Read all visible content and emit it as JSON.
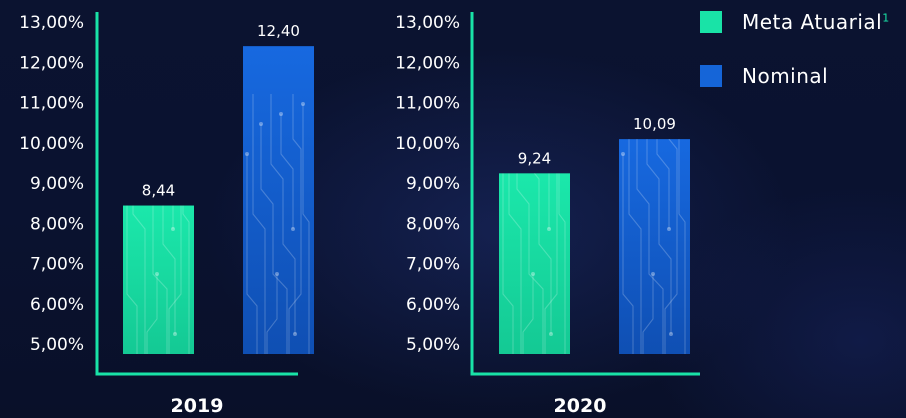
{
  "chart_data": [
    {
      "type": "bar",
      "categories": [
        "2019"
      ],
      "ylim": [
        5,
        13
      ],
      "yticks": [
        "5,00%",
        "6,00%",
        "7,00%",
        "8,00%",
        "9,00%",
        "10,00%",
        "11,00%",
        "12,00%",
        "13,00%"
      ],
      "series": [
        {
          "name": "Meta Atuarial",
          "values": [
            8.44
          ],
          "labels": [
            "8,44"
          ],
          "color": "#19e3a7"
        },
        {
          "name": "Nominal",
          "values": [
            12.4
          ],
          "labels": [
            "12,40"
          ],
          "color": "#1565d8"
        }
      ],
      "grid": false
    },
    {
      "type": "bar",
      "categories": [
        "2020"
      ],
      "ylim": [
        5,
        13
      ],
      "yticks": [
        "5,00%",
        "6,00%",
        "7,00%",
        "8,00%",
        "9,00%",
        "10,00%",
        "11,00%",
        "12,00%",
        "13,00%"
      ],
      "series": [
        {
          "name": "Meta Atuarial",
          "values": [
            9.24
          ],
          "labels": [
            "9,24"
          ],
          "color": "#19e3a7"
        },
        {
          "name": "Nominal",
          "values": [
            10.09
          ],
          "labels": [
            "10,09"
          ],
          "color": "#1565d8"
        }
      ],
      "grid": false
    }
  ],
  "legend": {
    "placement": "top-right",
    "items": [
      {
        "label": "Meta Atuarial",
        "superscript": "1",
        "color": "#19e3a7"
      },
      {
        "label": "Nominal",
        "superscript": "",
        "color": "#1565d8"
      }
    ]
  },
  "colors": {
    "axis": "#19e3a7",
    "background": "#0a1230"
  }
}
